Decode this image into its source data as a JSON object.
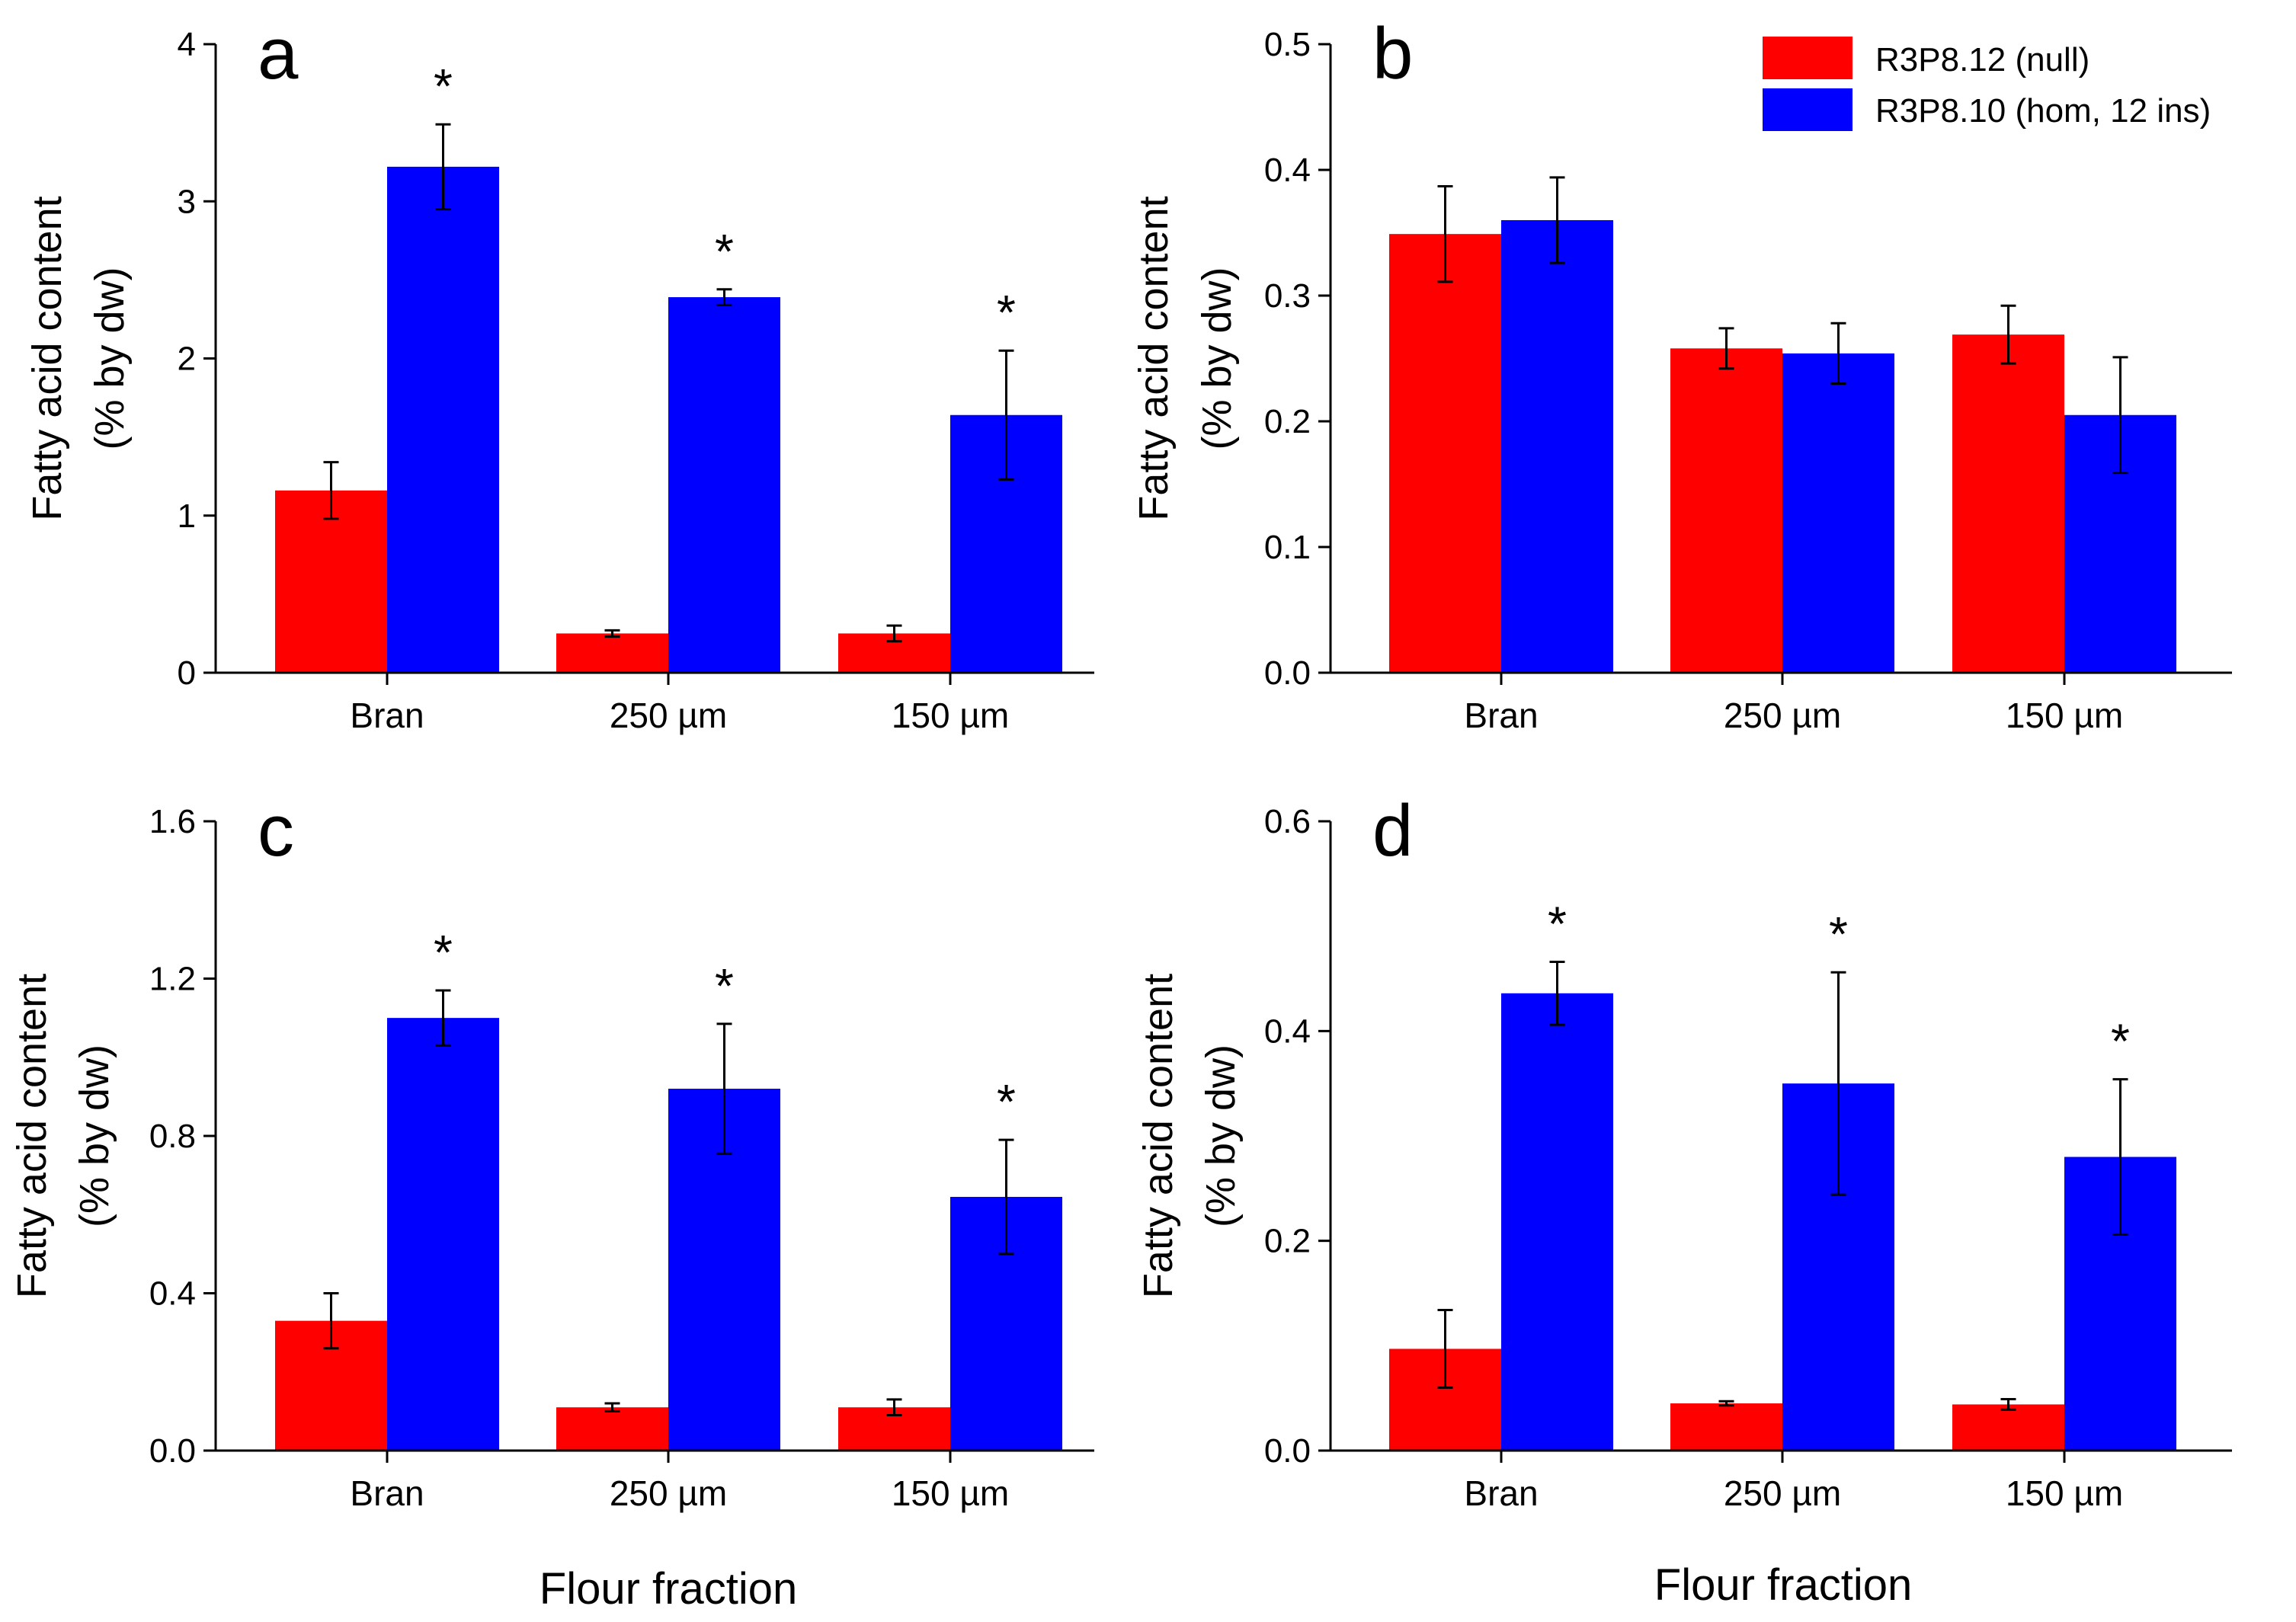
{
  "figure": {
    "xlabel": "Flour fraction",
    "legend": [
      {
        "label": "R3P8.12 (null)",
        "color": "#ff0000"
      },
      {
        "label": "R3P8.10 (hom, 12 ins)",
        "color": "#0000ff"
      }
    ]
  },
  "chart_data": [
    {
      "type": "bar",
      "panel": "a",
      "categories": [
        "Bran",
        "250 µm",
        "150 µm"
      ],
      "ylabel": [
        "Fatty acid content",
        "(% by dw)"
      ],
      "ylim": [
        0,
        4
      ],
      "yticks": [
        "0",
        "1",
        "2",
        "3",
        "4"
      ],
      "yticks_values": [
        0,
        1,
        2,
        3,
        4
      ],
      "series": [
        {
          "name": "R3P8.12 (null)",
          "color": "#ff0000",
          "values": [
            1.16,
            0.25,
            0.25
          ],
          "errors": [
            0.18,
            0.02,
            0.05
          ]
        },
        {
          "name": "R3P8.10 (hom, 12 ins)",
          "color": "#0000ff",
          "values": [
            3.22,
            2.39,
            1.64
          ],
          "errors": [
            0.27,
            0.05,
            0.41
          ]
        }
      ],
      "significance": [
        "*",
        "*",
        "*"
      ]
    },
    {
      "type": "bar",
      "panel": "b",
      "categories": [
        "Bran",
        "250 µm",
        "150 µm"
      ],
      "ylabel": [
        "Fatty acid content",
        "(% by dw)"
      ],
      "ylim": [
        0,
        0.5
      ],
      "yticks": [
        "0.0",
        "0.1",
        "0.2",
        "0.3",
        "0.4",
        "0.5"
      ],
      "yticks_values": [
        0,
        0.1,
        0.2,
        0.3,
        0.4,
        0.5
      ],
      "series": [
        {
          "name": "R3P8.12 (null)",
          "color": "#ff0000",
          "values": [
            0.349,
            0.258,
            0.269
          ],
          "errors": [
            0.038,
            0.016,
            0.023
          ]
        },
        {
          "name": "R3P8.10 (hom, 12 ins)",
          "color": "#0000ff",
          "values": [
            0.36,
            0.254,
            0.205
          ],
          "errors": [
            0.034,
            0.024,
            0.046
          ]
        }
      ],
      "significance": [
        "",
        "",
        ""
      ]
    },
    {
      "type": "bar",
      "panel": "c",
      "categories": [
        "Bran",
        "250 µm",
        "150 µm"
      ],
      "ylabel": [
        "Fatty acid content",
        "(% by dw)"
      ],
      "ylim": [
        0,
        1.6
      ],
      "yticks": [
        "0.0",
        "0.4",
        "0.8",
        "1.2",
        "1.6"
      ],
      "yticks_values": [
        0,
        0.4,
        0.8,
        1.2,
        1.6
      ],
      "series": [
        {
          "name": "R3P8.12 (null)",
          "color": "#ff0000",
          "values": [
            0.33,
            0.11,
            0.11
          ],
          "errors": [
            0.07,
            0.01,
            0.02
          ]
        },
        {
          "name": "R3P8.10 (hom, 12 ins)",
          "color": "#0000ff",
          "values": [
            1.1,
            0.92,
            0.645
          ],
          "errors": [
            0.07,
            0.165,
            0.145
          ]
        }
      ],
      "significance": [
        "*",
        "*",
        "*"
      ]
    },
    {
      "type": "bar",
      "panel": "d",
      "categories": [
        "Bran",
        "250 µm",
        "150 µm"
      ],
      "ylabel": [
        "Fatty acid content",
        "(% by dw)"
      ],
      "ylim": [
        0,
        0.6
      ],
      "yticks": [
        "0.0",
        "0.2",
        "0.4",
        "0.6"
      ],
      "yticks_values": [
        0,
        0.2,
        0.4,
        0.6
      ],
      "series": [
        {
          "name": "R3P8.12 (null)",
          "color": "#ff0000",
          "values": [
            0.097,
            0.045,
            0.044
          ],
          "errors": [
            0.037,
            0.002,
            0.005
          ]
        },
        {
          "name": "R3P8.10 (hom, 12 ins)",
          "color": "#0000ff",
          "values": [
            0.436,
            0.35,
            0.28
          ],
          "errors": [
            0.03,
            0.106,
            0.074
          ]
        }
      ],
      "significance": [
        "*",
        "*",
        "*"
      ]
    }
  ]
}
